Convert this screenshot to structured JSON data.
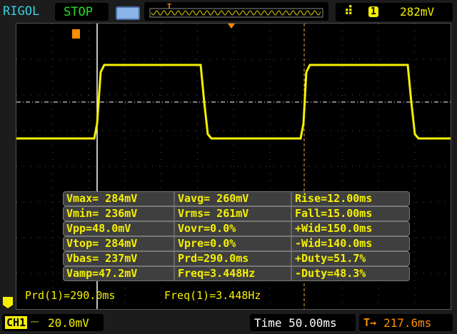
{
  "header": {
    "brand": "RIGOL",
    "run_state": "STOP",
    "trigger_channel": "1",
    "trigger_level": "282mV"
  },
  "measurements": [
    [
      "Vmax= 284mV",
      "Vavg= 260mV",
      "Rise=12.00ms"
    ],
    [
      "Vmin= 236mV",
      "Vrms= 261mV",
      "Fall=15.00ms"
    ],
    [
      "Vpp=48.0mV",
      "Vovr=0.0%",
      "+Wid=150.0ms"
    ],
    [
      "Vtop= 284mV",
      "Vpre=0.0%",
      "-Wid=140.0ms"
    ],
    [
      "Vbas= 237mV",
      "Prd=290.0ms",
      "+Duty=51.7%"
    ],
    [
      "Vamp=47.2mV",
      "Freq=3.448Hz",
      "-Duty=48.3%"
    ]
  ],
  "cursor_readout": {
    "period": "Prd(1)=290.0ms",
    "frequency": "Freq(1)=3.448Hz"
  },
  "footer": {
    "channel": "CH1",
    "volts_div": "20.0mV",
    "timebase": "Time 50.00ms",
    "trigger_offset": "217.6ms"
  },
  "colors": {
    "trace": "#f5f000",
    "brand": "#35d0e0",
    "stop": "#20e020",
    "trigger": "#ff8c00"
  }
}
